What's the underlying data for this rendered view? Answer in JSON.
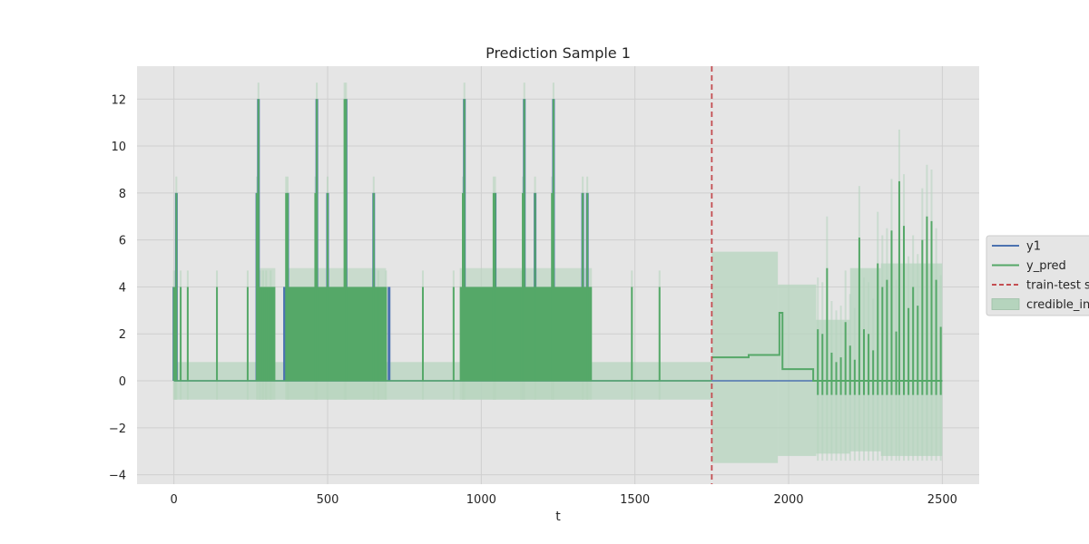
{
  "chart_data": {
    "type": "line",
    "title": "Prediction Sample 1",
    "xlabel": "t",
    "ylabel": "",
    "xlim": [
      -120,
      2620
    ],
    "ylim": [
      -4.4,
      13.4
    ],
    "xticks": [
      0,
      500,
      1000,
      1500,
      2000,
      2500
    ],
    "yticks": [
      -4,
      -2,
      0,
      2,
      4,
      6,
      8,
      10,
      12
    ],
    "grid": true,
    "legend_position": "center-right",
    "split_t": 1750,
    "series": [
      {
        "name": "y1",
        "color": "#4c72b0",
        "base": 0,
        "x": [
          0,
          8,
          270,
          275,
          290,
          310,
          360,
          370,
          380,
          460,
          465,
          500,
          550,
          560,
          650,
          700,
          940,
          945,
          960,
          1040,
          1045,
          1135,
          1140,
          1175,
          1230,
          1235,
          1330,
          1345,
          2500
        ],
        "y": [
          4,
          8,
          8,
          12,
          4,
          4,
          4,
          8,
          4,
          4,
          12,
          8,
          4,
          12,
          8,
          4,
          4,
          12,
          4,
          4,
          8,
          4,
          12,
          8,
          4,
          12,
          8,
          8,
          0
        ]
      },
      {
        "name": "y_pred",
        "color": "#55a868",
        "spikes": {
          "x": [
            0,
            5,
            8,
            22,
            45,
            140,
            240,
            270,
            275,
            280,
            290,
            300,
            315,
            365,
            370,
            460,
            465,
            500,
            555,
            560,
            650,
            665,
            690,
            810,
            910,
            940,
            945,
            1040,
            1045,
            1130,
            1135,
            1140,
            1175,
            1230,
            1235,
            1330,
            1345,
            1490,
            1580
          ],
          "y": [
            4,
            4,
            8,
            4,
            4,
            4,
            4,
            8,
            12,
            4,
            4,
            4,
            4,
            8,
            8,
            8,
            12,
            8,
            12,
            12,
            8,
            4,
            4,
            4,
            4,
            8,
            12,
            8,
            8,
            4,
            8,
            12,
            8,
            8,
            12,
            8,
            8,
            4,
            4
          ]
        },
        "dense_bands": [
          [
            280,
            330
          ],
          [
            370,
            690
          ],
          [
            930,
            1360
          ]
        ],
        "dense_level": 4,
        "test_steps": {
          "x": [
            1750,
            1870,
            1970,
            1980,
            2080
          ],
          "y": [
            1.0,
            1.1,
            2.9,
            0.5,
            0.0
          ]
        },
        "test_spikes": {
          "x": [
            2095,
            2110,
            2125,
            2140,
            2155,
            2170,
            2185,
            2200,
            2215,
            2230,
            2245,
            2260,
            2275,
            2290,
            2305,
            2320,
            2335,
            2350,
            2360,
            2375,
            2390,
            2405,
            2420,
            2435,
            2450,
            2465,
            2480,
            2495
          ],
          "y": [
            2.2,
            2.0,
            4.8,
            1.2,
            0.8,
            1.0,
            2.5,
            1.5,
            0.9,
            6.1,
            2.2,
            2.0,
            1.3,
            5.0,
            4.0,
            4.3,
            6.4,
            2.1,
            8.5,
            6.6,
            3.1,
            4.0,
            3.2,
            6.0,
            7.0,
            6.8,
            4.3,
            2.3
          ]
        }
      }
    ],
    "legend": [
      {
        "label": "y1",
        "style": "line",
        "color": "#4c72b0"
      },
      {
        "label": "y_pred",
        "style": "line",
        "color": "#55a868"
      },
      {
        "label": "train-test split",
        "style": "dashed",
        "color": "#c44e52"
      },
      {
        "label": "credible_interval",
        "style": "patch",
        "color": "#b5d4bd"
      }
    ],
    "credible_interval": {
      "train_band": [
        -0.8,
        0.8
      ],
      "train_band_dense": [
        -0.8,
        4.8
      ],
      "segments": [
        {
          "x": [
            1750,
            1965
          ],
          "lower": -3.5,
          "upper": 5.5
        },
        {
          "x": [
            1965,
            2090
          ],
          "lower": -3.2,
          "upper": 4.1
        },
        {
          "x": [
            2090,
            2200
          ],
          "lower": -3.1,
          "upper": 2.6
        },
        {
          "x": [
            2200,
            2300
          ],
          "lower": -3.0,
          "upper": 4.8
        },
        {
          "x": [
            2300,
            2500
          ],
          "lower": -3.2,
          "upper": 5.0
        }
      ]
    }
  }
}
